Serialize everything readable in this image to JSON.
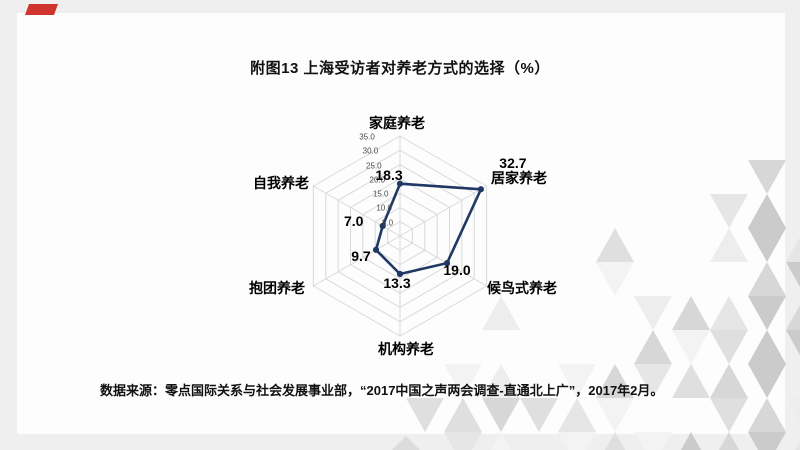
{
  "page": {
    "title": "附图13 上海受访者对养老方式的选择（%）",
    "source_note": "数据来源：零点国际关系与社会发展事业部，“2017中国之声两会调查-直通北上广”，2017年2月。"
  },
  "chart_data": {
    "type": "radar",
    "title": "附图13 上海受访者对养老方式的选择（%）",
    "categories": [
      "家庭养老",
      "居家养老",
      "候鸟式养老",
      "机构养老",
      "抱团养老",
      "自我养老"
    ],
    "values": [
      18.3,
      32.7,
      19.0,
      13.3,
      9.7,
      7.0
    ],
    "value_labels": [
      "18.3",
      "32.7",
      "19.0",
      "13.3",
      "9.7",
      "7.0"
    ],
    "ticks": [
      5,
      10,
      15,
      20,
      25,
      30,
      35
    ],
    "tick_labels": [
      "5.0",
      "10.0",
      "15.0",
      "20.0",
      "25.0",
      "30.0",
      "35.0"
    ],
    "rmin": 0,
    "rmax": 35,
    "grid": true,
    "legend": "none",
    "axes_count": 6,
    "series_color": "#1f3864",
    "grid_color": "#d9d9d9"
  },
  "colors": {
    "page_bg": "#efefef",
    "panel_bg": "#fdfdfd",
    "accent_red": "#cf352c",
    "series_navy": "#1f3864",
    "grid_gray": "#d9d9d9",
    "tick_text": "#4a4a4a",
    "label_text": "#000000",
    "mosaic_grays": [
      "#f3f3f3",
      "#ededed",
      "#e6e6e6",
      "#dfdfdf",
      "#d7d7d7",
      "#cbcbcb"
    ]
  }
}
